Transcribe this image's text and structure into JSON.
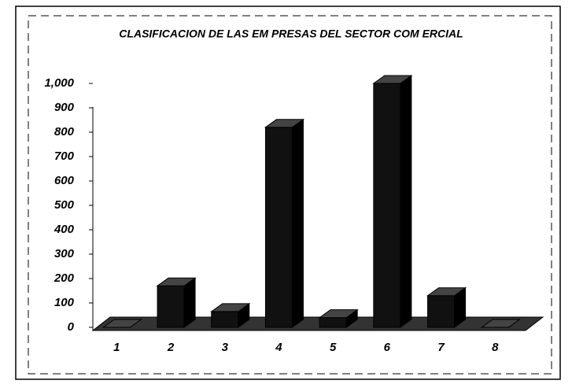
{
  "chart_data": {
    "type": "bar3d",
    "title": "CLASIFICACION DE LAS EM PRESAS DEL SECTOR COM ERCIAL",
    "categories": [
      "1",
      "2",
      "3",
      "4",
      "5",
      "6",
      "7",
      "8"
    ],
    "values": [
      0,
      170,
      65,
      820,
      40,
      1000,
      130,
      0
    ],
    "color": "#111111",
    "ylim": [
      0,
      1000
    ],
    "yticks": [
      0,
      100,
      200,
      300,
      400,
      500,
      600,
      700,
      800,
      900,
      {
        "value": 1000,
        "label": "1,000"
      }
    ]
  }
}
